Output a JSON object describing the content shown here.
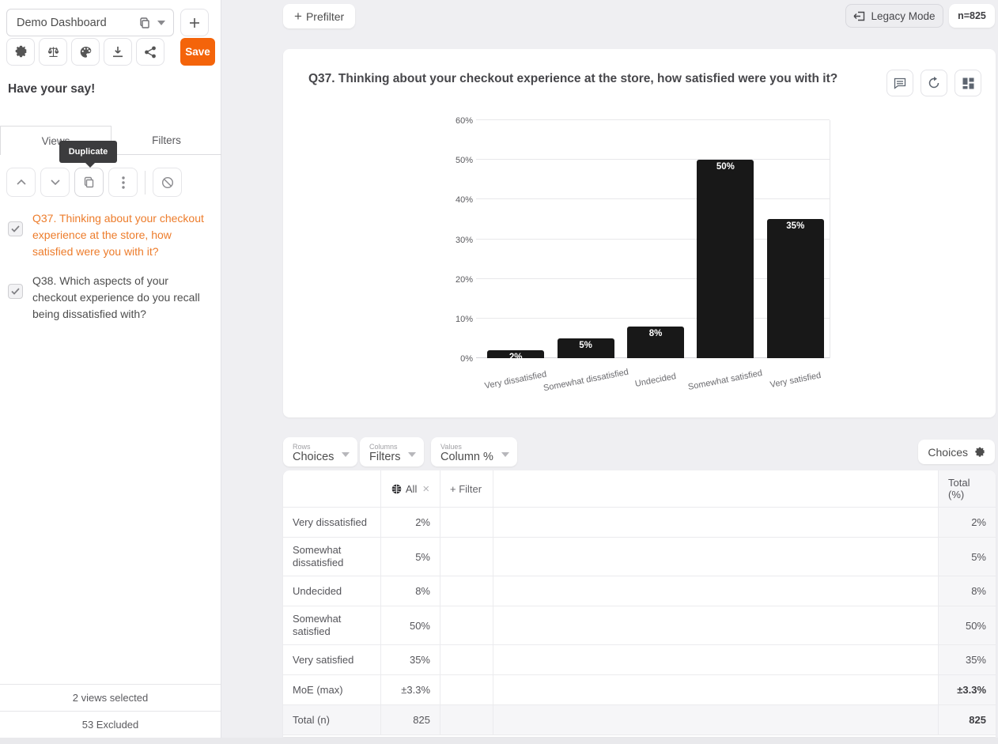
{
  "colors": {
    "accent": "#F4640A",
    "selected_question": "#ED7C2B",
    "bar": "#181818",
    "tooltip_bg": "#3C3C3E"
  },
  "sidebar": {
    "dashboard_select": {
      "value": "Demo Dashboard"
    },
    "save_button": "Save",
    "heading": "Have your say!",
    "tabs": [
      {
        "label": "Views"
      },
      {
        "label": "Filters"
      }
    ],
    "tooltip": "Duplicate",
    "questions": [
      {
        "label": "Q37. Thinking about your checkout experience at the store, how satisfied were you with it?",
        "selected": true,
        "checked": true
      },
      {
        "label": "Q38. Which aspects of your checkout experience do you recall being dissatisfied with?",
        "selected": false,
        "checked": true
      }
    ],
    "footer": {
      "views_selected": "2 views selected",
      "excluded": "53 Excluded"
    }
  },
  "topbar": {
    "prefilter_plus": "+",
    "prefilter": "Prefilter",
    "legacy_mode": "Legacy Mode",
    "sample_size": "n=825"
  },
  "chart_card": {
    "title": "Q37. Thinking about your checkout experience at the store, how satisfied were you with it?"
  },
  "chart_data": {
    "type": "bar",
    "title": "Q37. Thinking about your checkout experience at the store, how satisfied were you with it?",
    "categories": [
      "Very dissatisfied",
      "Somewhat dissatisfied",
      "Undecided",
      "Somewhat satisfied",
      "Very satisfied"
    ],
    "values": [
      2,
      5,
      8,
      50,
      35
    ],
    "value_labels": [
      "2%",
      "5%",
      "8%",
      "50%",
      "35%"
    ],
    "xlabel": "",
    "ylabel": "",
    "ylim": [
      0,
      60
    ],
    "yticks": [
      0,
      10,
      20,
      30,
      40,
      50,
      60
    ],
    "grid": true,
    "legend": false,
    "bar_color": "#181818",
    "value_label_color": "#ffffff"
  },
  "pivot_bar": {
    "rows": {
      "label": "Rows",
      "value": "Choices"
    },
    "columns": {
      "label": "Columns",
      "value": "Filters"
    },
    "values": {
      "label": "Values",
      "value": "Column %"
    },
    "settings": "Choices"
  },
  "table": {
    "filter_chip": "All",
    "add_filter": "+ Filter",
    "total_header": "Total (%)",
    "rows": [
      {
        "label": "Very dissatisfied",
        "all": "2%",
        "total": "2%"
      },
      {
        "label": "Somewhat dissatisfied",
        "all": "5%",
        "total": "5%"
      },
      {
        "label": "Undecided",
        "all": "8%",
        "total": "8%"
      },
      {
        "label": "Somewhat satisfied",
        "all": "50%",
        "total": "50%"
      },
      {
        "label": "Very satisfied",
        "all": "35%",
        "total": "35%"
      },
      {
        "label": "MoE (max)",
        "all": "±3.3%",
        "total": "±3.3%",
        "strong": true
      },
      {
        "label": "Total (n)",
        "all": "825",
        "total": "825",
        "strong": true,
        "shaded": true
      }
    ]
  }
}
